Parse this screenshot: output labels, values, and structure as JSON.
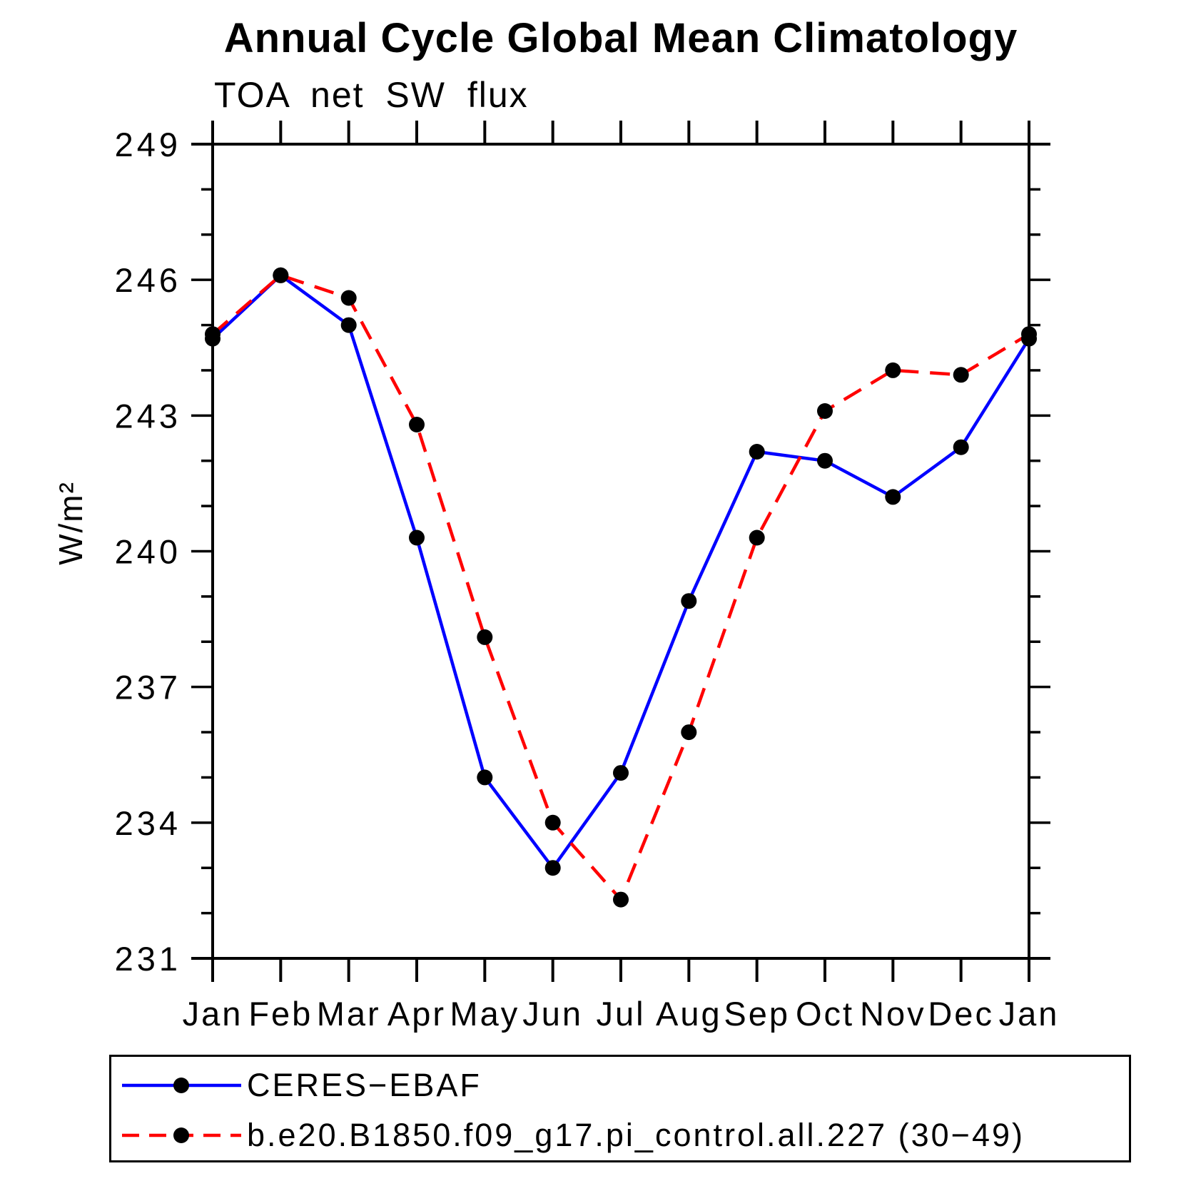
{
  "header": {
    "title": "Annual Cycle Global Mean Climatology",
    "subtitle": "TOA net SW flux"
  },
  "axes": {
    "y_label": "W/m²",
    "y_tick_labels": [
      "249",
      "246",
      "243",
      "240",
      "237",
      "234",
      "231"
    ],
    "x_tick_labels": [
      "Jan",
      "Feb",
      "Mar",
      "Apr",
      "May",
      "Jun",
      "Jul",
      "Aug",
      "Sep",
      "Oct",
      "Nov",
      "Dec",
      "Jan"
    ]
  },
  "chart_data": {
    "type": "line",
    "title": "Annual Cycle Global Mean Climatology",
    "left_axis_title": "TOA net SW flux",
    "ylabel": "W/m²",
    "x": [
      "Jan",
      "Feb",
      "Mar",
      "Apr",
      "May",
      "Jun",
      "Jul",
      "Aug",
      "Sep",
      "Oct",
      "Nov",
      "Dec",
      "Jan"
    ],
    "ylim": [
      231,
      249
    ],
    "ytick_major_interval": 3,
    "ytick_minor_interval": 1,
    "grid": false,
    "legend_position": "bottom",
    "series": [
      {
        "name": "CERES−EBAF",
        "color": "#0000ff",
        "line_style": "solid",
        "marker": "filled-circle",
        "marker_color": "#000000",
        "values": [
          244.7,
          246.1,
          245.0,
          240.3,
          235.0,
          233.0,
          235.1,
          238.9,
          242.2,
          242.0,
          241.2,
          242.3,
          244.7
        ]
      },
      {
        "name": "b.e20.B1850.f09_g17.pi_control.all.227 (30−49)",
        "color": "#ff0000",
        "line_style": "dashed",
        "marker": "filled-circle",
        "marker_color": "#000000",
        "values": [
          244.8,
          246.1,
          245.6,
          242.8,
          238.1,
          234.0,
          232.3,
          236.0,
          240.3,
          243.1,
          244.0,
          243.9,
          244.8
        ]
      }
    ]
  },
  "legend": {
    "entries": [
      {
        "label": "CERES−EBAF"
      },
      {
        "label": "b.e20.B1850.f09_g17.pi_control.all.227 (30−49)"
      }
    ]
  }
}
